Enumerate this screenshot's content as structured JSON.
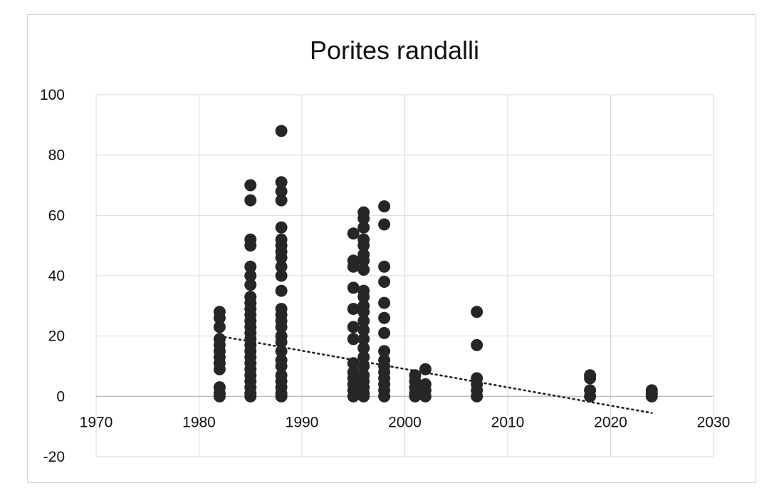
{
  "chart_data": {
    "type": "scatter",
    "title": "Porites randalli",
    "xlabel": "",
    "ylabel": "",
    "xlim": [
      1970,
      2030
    ],
    "ylim": [
      -20,
      100
    ],
    "x_ticks": [
      "1970",
      "1980",
      "1990",
      "2000",
      "2010",
      "2020",
      "2030"
    ],
    "y_ticks": [
      "100",
      "80",
      "60",
      "40",
      "20",
      "0",
      "-20"
    ],
    "grid": true,
    "legend": "none",
    "marker_color": "#262626",
    "trendline": {
      "style": "dotted",
      "type": "linear",
      "x": [
        1982,
        2024
      ],
      "y": [
        20,
        -5.5
      ]
    },
    "points": [
      [
        1982,
        28
      ],
      [
        1982,
        26
      ],
      [
        1982,
        23
      ],
      [
        1982,
        19
      ],
      [
        1982,
        17
      ],
      [
        1982,
        15
      ],
      [
        1982,
        13
      ],
      [
        1982,
        11
      ],
      [
        1982,
        9
      ],
      [
        1982,
        3
      ],
      [
        1982,
        1
      ],
      [
        1982,
        0
      ],
      [
        1985,
        70
      ],
      [
        1985,
        65
      ],
      [
        1985,
        52
      ],
      [
        1985,
        50
      ],
      [
        1985,
        43
      ],
      [
        1985,
        40
      ],
      [
        1985,
        37
      ],
      [
        1985,
        33
      ],
      [
        1985,
        31
      ],
      [
        1985,
        29
      ],
      [
        1985,
        27
      ],
      [
        1985,
        25
      ],
      [
        1985,
        23
      ],
      [
        1985,
        21
      ],
      [
        1985,
        19
      ],
      [
        1985,
        17
      ],
      [
        1985,
        15
      ],
      [
        1985,
        13
      ],
      [
        1985,
        11
      ],
      [
        1985,
        9
      ],
      [
        1985,
        7
      ],
      [
        1985,
        5
      ],
      [
        1985,
        3
      ],
      [
        1985,
        1
      ],
      [
        1985,
        0
      ],
      [
        1988,
        88
      ],
      [
        1988,
        71
      ],
      [
        1988,
        68
      ],
      [
        1988,
        65
      ],
      [
        1988,
        56
      ],
      [
        1988,
        52
      ],
      [
        1988,
        50
      ],
      [
        1988,
        48
      ],
      [
        1988,
        46
      ],
      [
        1988,
        43
      ],
      [
        1988,
        40
      ],
      [
        1988,
        35
      ],
      [
        1988,
        29
      ],
      [
        1988,
        27
      ],
      [
        1988,
        25
      ],
      [
        1988,
        23
      ],
      [
        1988,
        20
      ],
      [
        1988,
        18
      ],
      [
        1988,
        15
      ],
      [
        1988,
        12
      ],
      [
        1988,
        10
      ],
      [
        1988,
        7
      ],
      [
        1988,
        5
      ],
      [
        1988,
        3
      ],
      [
        1988,
        1
      ],
      [
        1988,
        0
      ],
      [
        1995,
        54
      ],
      [
        1995,
        45
      ],
      [
        1995,
        43
      ],
      [
        1995,
        36
      ],
      [
        1995,
        29
      ],
      [
        1995,
        23
      ],
      [
        1995,
        19
      ],
      [
        1995,
        11
      ],
      [
        1995,
        8
      ],
      [
        1995,
        6
      ],
      [
        1995,
        4
      ],
      [
        1995,
        2
      ],
      [
        1995,
        0
      ],
      [
        1996,
        61
      ],
      [
        1996,
        59
      ],
      [
        1996,
        56
      ],
      [
        1996,
        52
      ],
      [
        1996,
        50
      ],
      [
        1996,
        47
      ],
      [
        1996,
        45
      ],
      [
        1996,
        42
      ],
      [
        1996,
        35
      ],
      [
        1996,
        33
      ],
      [
        1996,
        30
      ],
      [
        1996,
        28
      ],
      [
        1996,
        25
      ],
      [
        1996,
        22
      ],
      [
        1996,
        19
      ],
      [
        1996,
        16
      ],
      [
        1996,
        13
      ],
      [
        1996,
        10
      ],
      [
        1996,
        7
      ],
      [
        1996,
        5
      ],
      [
        1996,
        3
      ],
      [
        1996,
        1
      ],
      [
        1996,
        0
      ],
      [
        1998,
        63
      ],
      [
        1998,
        57
      ],
      [
        1998,
        43
      ],
      [
        1998,
        38
      ],
      [
        1998,
        31
      ],
      [
        1998,
        26
      ],
      [
        1998,
        21
      ],
      [
        1998,
        15
      ],
      [
        1998,
        12
      ],
      [
        1998,
        10
      ],
      [
        1998,
        8
      ],
      [
        1998,
        6
      ],
      [
        1998,
        4
      ],
      [
        1998,
        2
      ],
      [
        1998,
        0
      ],
      [
        2001,
        7
      ],
      [
        2001,
        5
      ],
      [
        2001,
        3
      ],
      [
        2001,
        1
      ],
      [
        2001,
        0
      ],
      [
        2002,
        9
      ],
      [
        2002,
        4
      ],
      [
        2002,
        2
      ],
      [
        2002,
        0
      ],
      [
        2007,
        28
      ],
      [
        2007,
        17
      ],
      [
        2007,
        6
      ],
      [
        2007,
        4
      ],
      [
        2007,
        2
      ],
      [
        2007,
        0
      ],
      [
        2018,
        7
      ],
      [
        2018,
        6
      ],
      [
        2018,
        2
      ],
      [
        2018,
        0
      ],
      [
        2024,
        2
      ],
      [
        2024,
        1
      ],
      [
        2024,
        0
      ]
    ]
  }
}
